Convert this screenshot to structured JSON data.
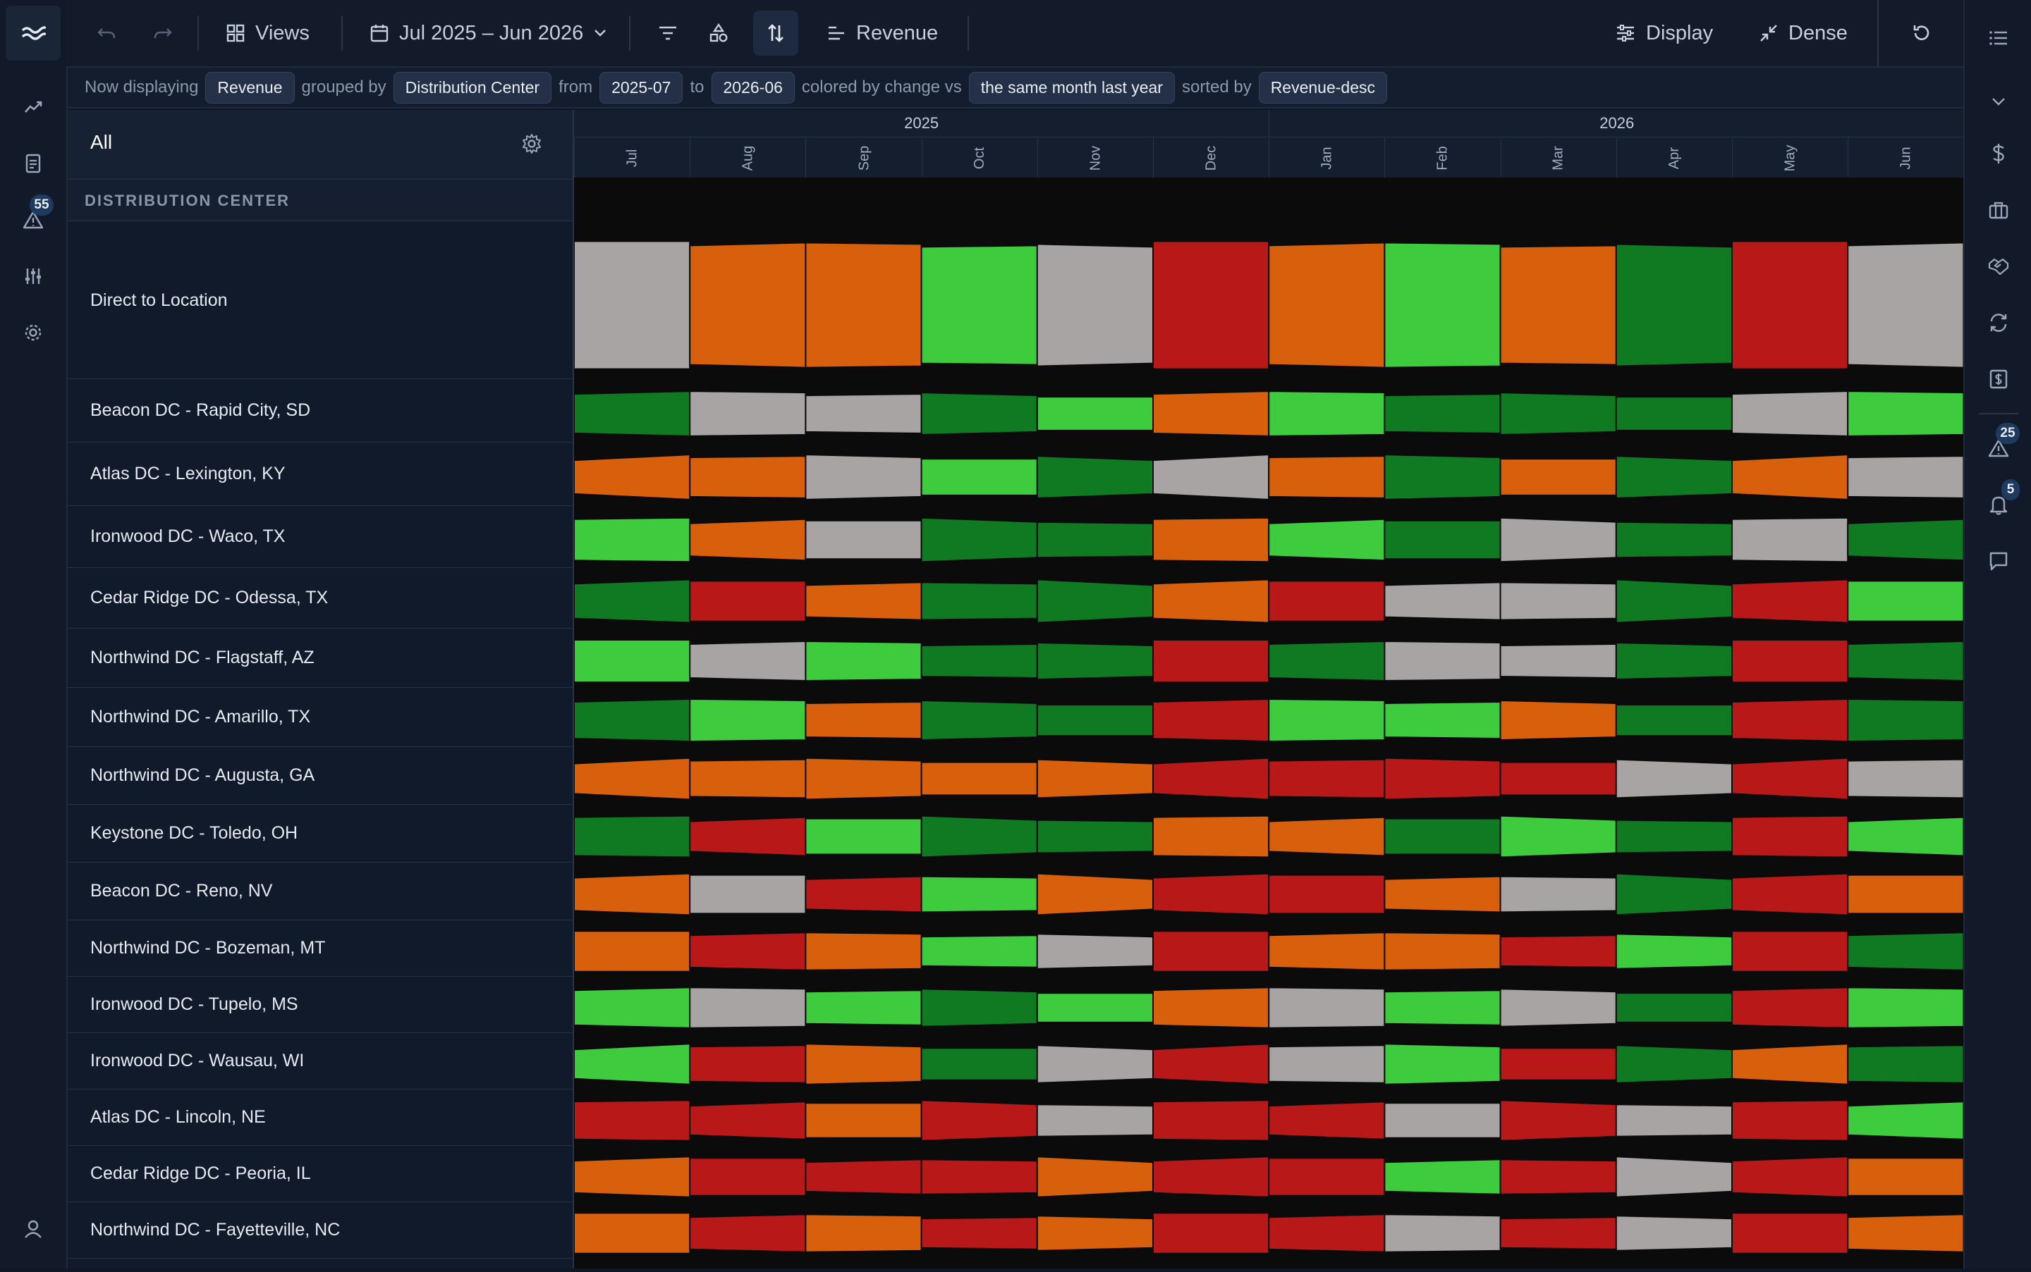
{
  "toolbar": {
    "views_label": "Views",
    "date_range": "Jul 2025 – Jun 2026",
    "measure_label": "Revenue",
    "display_label": "Display",
    "dense_label": "Dense"
  },
  "context": {
    "prefix": "Now displaying",
    "measure": "Revenue",
    "grouped_by_text": "grouped by",
    "group": "Distribution Center",
    "from_text": "from",
    "from": "2025-07",
    "to_text": "to",
    "to": "2026-06",
    "colored_text": "colored by change vs",
    "comparison": "the same month last year",
    "sorted_text": "sorted by",
    "sort": "Revenue-desc"
  },
  "left_rail": {
    "alerts_badge": "55"
  },
  "right_rail": {
    "alerts_badge": "25",
    "notifications_badge": "5"
  },
  "panel": {
    "all_label": "All",
    "group_header": "DISTRIBUTION CENTER"
  },
  "timeline": {
    "years": [
      "2025",
      "2026"
    ],
    "months": [
      "Jul",
      "Aug",
      "Sep",
      "Oct",
      "Nov",
      "Dec",
      "Jan",
      "Feb",
      "Mar",
      "Apr",
      "May",
      "Jun"
    ]
  },
  "colors": {
    "strong_gain": "#0f7a22",
    "gain": "#3ecc3e",
    "flat": "#a8a4a4",
    "decline": "#d8600c",
    "strong_decline": "#b81818"
  },
  "chart_data": {
    "type": "heatmap",
    "color_key": [
      "strong_gain",
      "gain",
      "flat",
      "decline",
      "strong_decline"
    ],
    "rows": [
      {
        "label": "Direct to Location",
        "cells": [
          "flat",
          "decline",
          "decline",
          "gain",
          "flat",
          "strong_decline",
          "decline",
          "gain",
          "decline",
          "strong_gain",
          "strong_decline",
          "flat"
        ]
      },
      {
        "label": "Beacon DC - Rapid City, SD",
        "cells": [
          "strong_gain",
          "flat",
          "flat",
          "strong_gain",
          "gain",
          "decline",
          "gain",
          "strong_gain",
          "strong_gain",
          "strong_gain",
          "flat",
          "gain"
        ]
      },
      {
        "label": "Atlas DC - Lexington, KY",
        "cells": [
          "decline",
          "decline",
          "flat",
          "gain",
          "strong_gain",
          "flat",
          "decline",
          "strong_gain",
          "decline",
          "strong_gain",
          "decline",
          "flat"
        ]
      },
      {
        "label": "Ironwood DC - Waco, TX",
        "cells": [
          "gain",
          "decline",
          "flat",
          "strong_gain",
          "strong_gain",
          "decline",
          "gain",
          "strong_gain",
          "flat",
          "strong_gain",
          "flat",
          "strong_gain"
        ]
      },
      {
        "label": "Cedar Ridge DC - Odessa, TX",
        "cells": [
          "strong_gain",
          "strong_decline",
          "decline",
          "strong_gain",
          "strong_gain",
          "decline",
          "strong_decline",
          "flat",
          "flat",
          "strong_gain",
          "strong_decline",
          "gain"
        ]
      },
      {
        "label": "Northwind DC - Flagstaff, AZ",
        "cells": [
          "gain",
          "flat",
          "gain",
          "strong_gain",
          "strong_gain",
          "strong_decline",
          "strong_gain",
          "flat",
          "flat",
          "strong_gain",
          "strong_decline",
          "strong_gain"
        ]
      },
      {
        "label": "Northwind DC - Amarillo, TX",
        "cells": [
          "strong_gain",
          "gain",
          "decline",
          "strong_gain",
          "strong_gain",
          "strong_decline",
          "gain",
          "gain",
          "decline",
          "strong_gain",
          "strong_decline",
          "strong_gain"
        ]
      },
      {
        "label": "Northwind DC - Augusta, GA",
        "cells": [
          "decline",
          "decline",
          "decline",
          "decline",
          "decline",
          "strong_decline",
          "strong_decline",
          "strong_decline",
          "strong_decline",
          "flat",
          "strong_decline",
          "flat"
        ]
      },
      {
        "label": "Keystone DC - Toledo, OH",
        "cells": [
          "strong_gain",
          "strong_decline",
          "gain",
          "strong_gain",
          "strong_gain",
          "decline",
          "decline",
          "strong_gain",
          "gain",
          "strong_gain",
          "strong_decline",
          "gain"
        ]
      },
      {
        "label": "Beacon DC - Reno, NV",
        "cells": [
          "decline",
          "flat",
          "strong_decline",
          "gain",
          "decline",
          "strong_decline",
          "strong_decline",
          "decline",
          "flat",
          "strong_gain",
          "strong_decline",
          "decline"
        ]
      },
      {
        "label": "Northwind DC - Bozeman, MT",
        "cells": [
          "decline",
          "strong_decline",
          "decline",
          "gain",
          "flat",
          "strong_decline",
          "decline",
          "decline",
          "strong_decline",
          "gain",
          "strong_decline",
          "strong_gain"
        ]
      },
      {
        "label": "Ironwood DC - Tupelo, MS",
        "cells": [
          "gain",
          "flat",
          "gain",
          "strong_gain",
          "gain",
          "decline",
          "flat",
          "gain",
          "flat",
          "strong_gain",
          "strong_decline",
          "gain"
        ]
      },
      {
        "label": "Ironwood DC - Wausau, WI",
        "cells": [
          "gain",
          "strong_decline",
          "decline",
          "strong_gain",
          "flat",
          "strong_decline",
          "flat",
          "gain",
          "strong_decline",
          "strong_gain",
          "decline",
          "strong_gain"
        ]
      },
      {
        "label": "Atlas DC - Lincoln, NE",
        "cells": [
          "strong_decline",
          "strong_decline",
          "decline",
          "strong_decline",
          "flat",
          "strong_decline",
          "strong_decline",
          "flat",
          "strong_decline",
          "flat",
          "strong_decline",
          "gain"
        ]
      },
      {
        "label": "Cedar Ridge DC - Peoria, IL",
        "cells": [
          "decline",
          "strong_decline",
          "strong_decline",
          "strong_decline",
          "decline",
          "strong_decline",
          "strong_decline",
          "gain",
          "strong_decline",
          "flat",
          "strong_decline",
          "decline"
        ]
      },
      {
        "label": "Northwind DC - Fayetteville, NC",
        "cells": [
          "decline",
          "strong_decline",
          "decline",
          "strong_decline",
          "decline",
          "strong_decline",
          "strong_decline",
          "flat",
          "strong_decline",
          "flat",
          "strong_decline",
          "decline"
        ]
      }
    ]
  }
}
